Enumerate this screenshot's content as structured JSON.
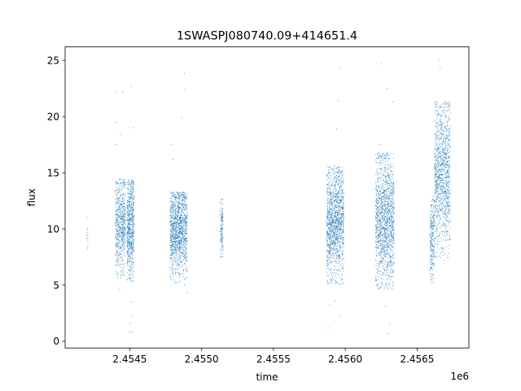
{
  "chart_data": {
    "type": "scatter",
    "title": "1SWASPJ080740.09+414651.4",
    "xlabel": "time",
    "ylabel": "flux",
    "x_offset_label": "1e6",
    "xlim": [
      2.45405,
      2.45686
    ],
    "ylim": [
      -0.6,
      26.2
    ],
    "grid": false,
    "legend": "none",
    "marker_color": "#1f77b4",
    "x_ticks": [
      2.4545,
      2.455,
      2.4555,
      2.456,
      2.4565
    ],
    "x_tick_labels": [
      "2.4545",
      "2.4550",
      "2.4555",
      "2.4560",
      "2.4565"
    ],
    "y_ticks": [
      0,
      5,
      10,
      15,
      20,
      25
    ],
    "y_tick_labels": [
      "0",
      "5",
      "10",
      "15",
      "20",
      "25"
    ],
    "segments": [
      {
        "x_start": 2.4542,
        "x_end": 2.45421,
        "points": 10,
        "y_low": 8.3,
        "y_high": 10.5,
        "y_mid": 9.5,
        "outliers": [
          [
            2.454203,
            11.0
          ],
          [
            2.454205,
            8.3
          ]
        ]
      },
      {
        "x_start": 2.4544,
        "x_end": 2.45447,
        "points": 650,
        "y_low": 5.6,
        "y_high": 14.5,
        "y_mid": 10.3,
        "outliers": [
          [
            2.4544,
            22.2
          ],
          [
            2.454405,
            19.5
          ],
          [
            2.454403,
            17.5
          ],
          [
            2.45443,
            4.6
          ],
          [
            2.45445,
            22.2
          ],
          [
            2.454435,
            18.4
          ]
        ]
      },
      {
        "x_start": 2.45448,
        "x_end": 2.45453,
        "points": 700,
        "y_low": 5.3,
        "y_high": 14.4,
        "y_mid": 10.2,
        "outliers": [
          [
            2.45451,
            22.7
          ],
          [
            2.45452,
            2.2
          ],
          [
            2.454505,
            1.6
          ],
          [
            2.4545,
            0.8
          ],
          [
            2.454515,
            0.8
          ],
          [
            2.454525,
            19.0
          ],
          [
            2.45451,
            3.5
          ]
        ]
      },
      {
        "x_start": 2.45478,
        "x_end": 2.4549,
        "points": 1300,
        "y_low": 4.9,
        "y_high": 13.3,
        "y_mid": 10.0,
        "outliers": [
          [
            2.45479,
            17.5
          ],
          [
            2.4548,
            16.2
          ],
          [
            2.45488,
            23.8
          ],
          [
            2.454885,
            22.4
          ],
          [
            2.45486,
            19.9
          ],
          [
            2.4549,
            4.3
          ]
        ]
      },
      {
        "x_start": 2.45513,
        "x_end": 2.45515,
        "points": 140,
        "y_low": 7.5,
        "y_high": 12.8,
        "y_mid": 10.0,
        "outliers": []
      },
      {
        "x_start": 2.45587,
        "x_end": 2.45599,
        "points": 1400,
        "y_low": 5.0,
        "y_high": 15.6,
        "y_mid": 10.5,
        "outliers": [
          [
            2.45588,
            1.2
          ],
          [
            2.45589,
            3.2
          ],
          [
            2.45596,
            24.3
          ],
          [
            2.45595,
            21.4
          ],
          [
            2.45594,
            18.9
          ],
          [
            2.455965,
            2.2
          ],
          [
            2.45593,
            3.6
          ]
        ]
      },
      {
        "x_start": 2.45621,
        "x_end": 2.45634,
        "points": 1500,
        "y_low": 4.6,
        "y_high": 16.8,
        "y_mid": 10.8,
        "outliers": [
          [
            2.45625,
            24.7
          ],
          [
            2.45629,
            22.5
          ],
          [
            2.45633,
            21.3
          ],
          [
            2.45624,
            17.5
          ],
          [
            2.4563,
            0.7
          ],
          [
            2.45631,
            1.5
          ],
          [
            2.45628,
            3.1
          ]
        ]
      },
      {
        "x_start": 2.45659,
        "x_end": 2.45662,
        "points": 260,
        "y_low": 5.2,
        "y_high": 13.0,
        "y_mid": 9.0,
        "outliers": []
      },
      {
        "x_start": 2.45662,
        "x_end": 2.45673,
        "points": 1200,
        "y_low": 7.4,
        "y_high": 21.4,
        "y_mid": 15.0,
        "outliers": [
          [
            2.45665,
            25.0
          ],
          [
            2.45666,
            24.4
          ],
          [
            2.45669,
            7.2
          ],
          [
            2.4567,
            9.0
          ],
          [
            2.45672,
            7.8
          ]
        ]
      }
    ]
  }
}
